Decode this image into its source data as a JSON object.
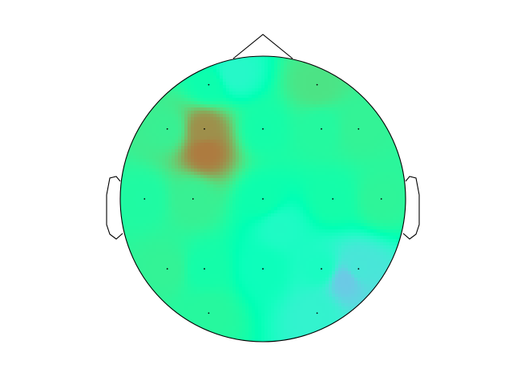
{
  "chart_data": {
    "type": "heatmap",
    "subtype": "eeg-scalp-topomap",
    "title": "",
    "colormap": "rainbow",
    "colorbar": false,
    "value_range": [
      -1,
      1
    ],
    "grid": false,
    "sensors": [
      {
        "label": "",
        "x": -0.38,
        "y": 0.8,
        "value": 0.05
      },
      {
        "label": "",
        "x": 0.38,
        "y": 0.8,
        "value": 0.3
      },
      {
        "label": "",
        "x": -0.67,
        "y": 0.49,
        "value": 0.22
      },
      {
        "label": "",
        "x": -0.41,
        "y": 0.49,
        "value": 0.62
      },
      {
        "label": "",
        "x": 0.0,
        "y": 0.49,
        "value": 0.08
      },
      {
        "label": "",
        "x": 0.41,
        "y": 0.49,
        "value": 0.14
      },
      {
        "label": "",
        "x": 0.67,
        "y": 0.49,
        "value": 0.2
      },
      {
        "label": "",
        "x": -0.83,
        "y": 0.0,
        "value": 0.12
      },
      {
        "label": "",
        "x": -0.49,
        "y": 0.0,
        "value": 0.22
      },
      {
        "label": "",
        "x": 0.0,
        "y": 0.0,
        "value": 0.05
      },
      {
        "label": "",
        "x": 0.49,
        "y": 0.0,
        "value": 0.08
      },
      {
        "label": "",
        "x": 0.83,
        "y": 0.0,
        "value": 0.18
      },
      {
        "label": "",
        "x": -0.67,
        "y": -0.49,
        "value": 0.2
      },
      {
        "label": "",
        "x": -0.41,
        "y": -0.49,
        "value": 0.08
      },
      {
        "label": "",
        "x": 0.0,
        "y": -0.49,
        "value": -0.05
      },
      {
        "label": "",
        "x": 0.41,
        "y": -0.49,
        "value": -0.1
      },
      {
        "label": "",
        "x": 0.67,
        "y": -0.49,
        "value": -0.28
      },
      {
        "label": "",
        "x": -0.38,
        "y": -0.8,
        "value": 0.15
      },
      {
        "label": "",
        "x": 0.38,
        "y": -0.8,
        "value": -0.2
      }
    ],
    "extra_sources": [
      {
        "x": -0.4,
        "y": 0.33,
        "value": 0.68
      },
      {
        "x": 0.58,
        "y": -0.57,
        "value": -0.42
      },
      {
        "x": -0.2,
        "y": 0.88,
        "value": -0.15
      },
      {
        "x": 0.12,
        "y": -0.2,
        "value": -0.12
      }
    ]
  }
}
